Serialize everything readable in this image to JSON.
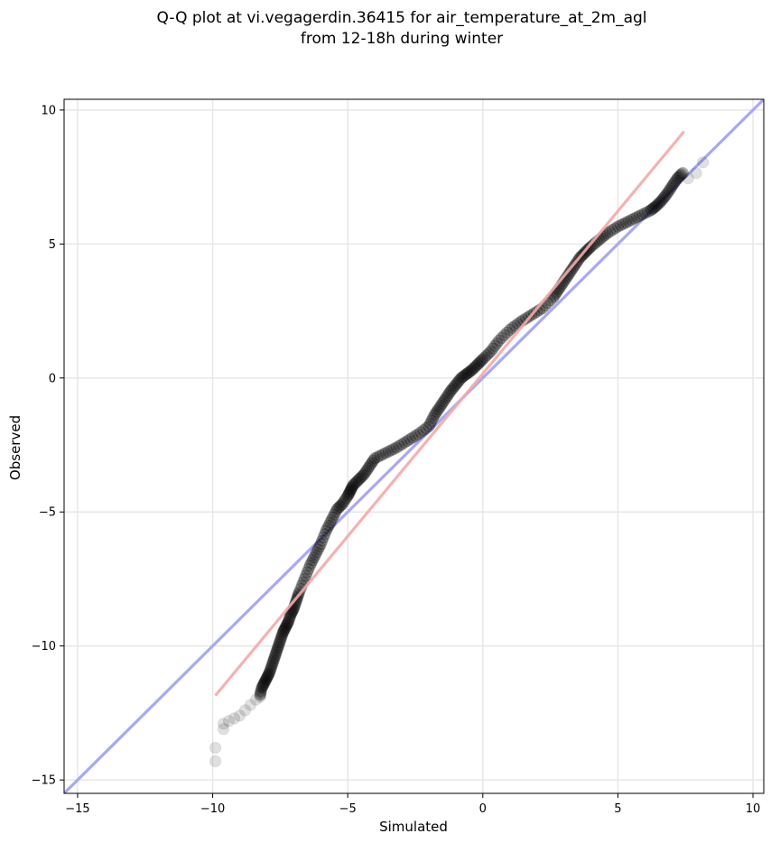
{
  "chart_data": {
    "type": "scatter",
    "title_lines": [
      "Q-Q plot at vi.vegagerdin.36415 for air_temperature_at_2m_agl",
      "from 12-18h during winter"
    ],
    "xlabel": "Simulated",
    "ylabel": "Observed",
    "xlim": [
      -15.5,
      10.4
    ],
    "ylim": [
      -15.5,
      10.4
    ],
    "xticks": [
      -15,
      -10,
      -5,
      0,
      5,
      10
    ],
    "yticks": [
      -15,
      -10,
      -5,
      0,
      5,
      10
    ],
    "xtick_labels": [
      "−15",
      "−10",
      "−5",
      "0",
      "5",
      "10"
    ],
    "ytick_labels": [
      "−15",
      "−10",
      "−5",
      "0",
      "5",
      "10"
    ],
    "grid": true,
    "identity_line": {
      "from": [
        -15.5,
        -15.5
      ],
      "to": [
        10.4,
        10.4
      ],
      "color": "#a8a8f4"
    },
    "fit_line": {
      "from": [
        -9.9,
        -11.85
      ],
      "to": [
        7.45,
        9.2
      ],
      "color": "#f4a8a8"
    },
    "quantile_points": {
      "color": "#000000",
      "x": [
        -9.9,
        -9.9,
        -9.6,
        -9.6,
        -9.4,
        -9.2,
        -9.0,
        -8.8,
        -8.6,
        -8.4,
        -8.25,
        -8.2,
        -8.1,
        -8.0,
        -7.9,
        -7.8,
        -7.7,
        -7.6,
        -7.5,
        -7.4,
        -7.3,
        -7.2,
        -7.1,
        -7.0,
        -6.9,
        -6.8,
        -6.6,
        -6.4,
        -6.2,
        -6.0,
        -5.8,
        -5.6,
        -5.4,
        -5.2,
        -5.0,
        -4.9,
        -4.8,
        -4.6,
        -4.4,
        -4.2,
        -4.0,
        -3.6,
        -3.2,
        -2.8,
        -2.4,
        -2.0,
        -1.8,
        -1.6,
        -1.4,
        -1.2,
        -1.0,
        -0.8,
        -0.6,
        -0.4,
        -0.2,
        0.0,
        0.3,
        0.6,
        1.0,
        1.4,
        1.8,
        2.2,
        2.6,
        2.8,
        3.0,
        3.2,
        3.4,
        3.6,
        3.8,
        4.0,
        4.3,
        4.6,
        5.0,
        5.4,
        5.8,
        6.2,
        6.4,
        6.6,
        6.8,
        7.0,
        7.2,
        7.4
      ],
      "y": [
        -14.3,
        -13.8,
        -13.1,
        -12.9,
        -12.8,
        -12.7,
        -12.6,
        -12.4,
        -12.2,
        -12.0,
        -11.9,
        -11.6,
        -11.4,
        -11.2,
        -11.0,
        -10.7,
        -10.4,
        -10.1,
        -9.8,
        -9.5,
        -9.3,
        -9.1,
        -8.8,
        -8.6,
        -8.3,
        -8.0,
        -7.5,
        -7.0,
        -6.6,
        -6.2,
        -5.7,
        -5.3,
        -4.9,
        -4.7,
        -4.4,
        -4.2,
        -4.0,
        -3.8,
        -3.6,
        -3.3,
        -3.0,
        -2.8,
        -2.6,
        -2.35,
        -2.1,
        -1.8,
        -1.4,
        -1.1,
        -0.8,
        -0.5,
        -0.25,
        0.0,
        0.15,
        0.3,
        0.5,
        0.7,
        1.0,
        1.4,
        1.8,
        2.1,
        2.35,
        2.6,
        3.0,
        3.3,
        3.6,
        3.9,
        4.2,
        4.5,
        4.7,
        4.9,
        5.15,
        5.4,
        5.65,
        5.85,
        6.05,
        6.25,
        6.4,
        6.6,
        6.85,
        7.15,
        7.45,
        7.65
      ]
    },
    "faint_tail_points": {
      "x": [
        7.6,
        7.9,
        8.15
      ],
      "y": [
        7.45,
        7.65,
        8.05
      ]
    }
  }
}
